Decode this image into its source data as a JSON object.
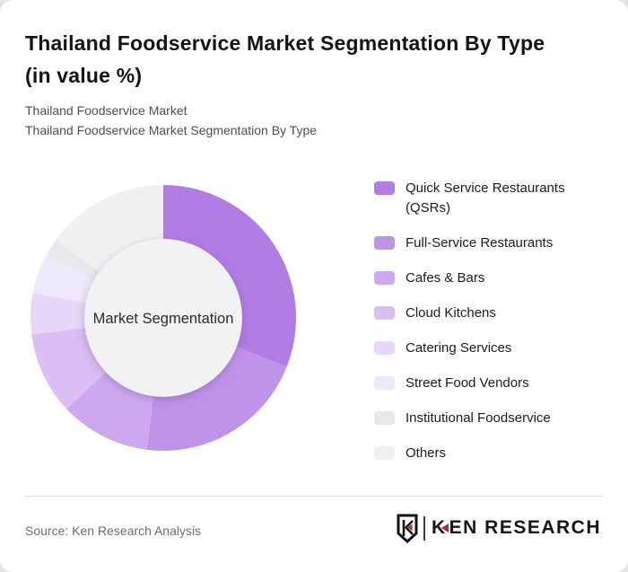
{
  "page": {
    "title_line1": "Thailand Foodservice Market Segmentation By Type",
    "title_line2": "(in value %)",
    "subtitle_line1": "Thailand Foodservice Market",
    "subtitle_line2": "Thailand Foodservice Market Segmentation By Type",
    "source_text": "Source: Ken Research Analysis",
    "brand": {
      "wordmark_k": "K",
      "wordmark_rest": "EN RESEARCH",
      "accent_color": "#c0272d"
    }
  },
  "chart_data": {
    "type": "pie",
    "subtype": "donut",
    "title": "Thailand Foodservice Market Segmentation By Type (in value %)",
    "units": "value %",
    "center_label": "Market Segmentation",
    "start_angle_deg": 0,
    "direction": "clockwise",
    "legend_position": "right",
    "labels": [
      "Quick Service Restaurants (QSRs)",
      "Full-Service Restaurants",
      "Cafes & Bars",
      "Cloud Kitchens",
      "Catering Services",
      "Street Food Vendors",
      "Institutional Foodservice",
      "Others"
    ],
    "values": [
      31,
      21,
      11,
      10,
      5,
      5,
      2,
      15
    ],
    "colors": [
      "#b17de5",
      "#c093ea",
      "#cda8ef",
      "#dabef4",
      "#e6d6f8",
      "#eee8fb",
      "#e8e7e9",
      "#f1f0f1"
    ],
    "inner_circle_color": "#f2f1f3"
  }
}
